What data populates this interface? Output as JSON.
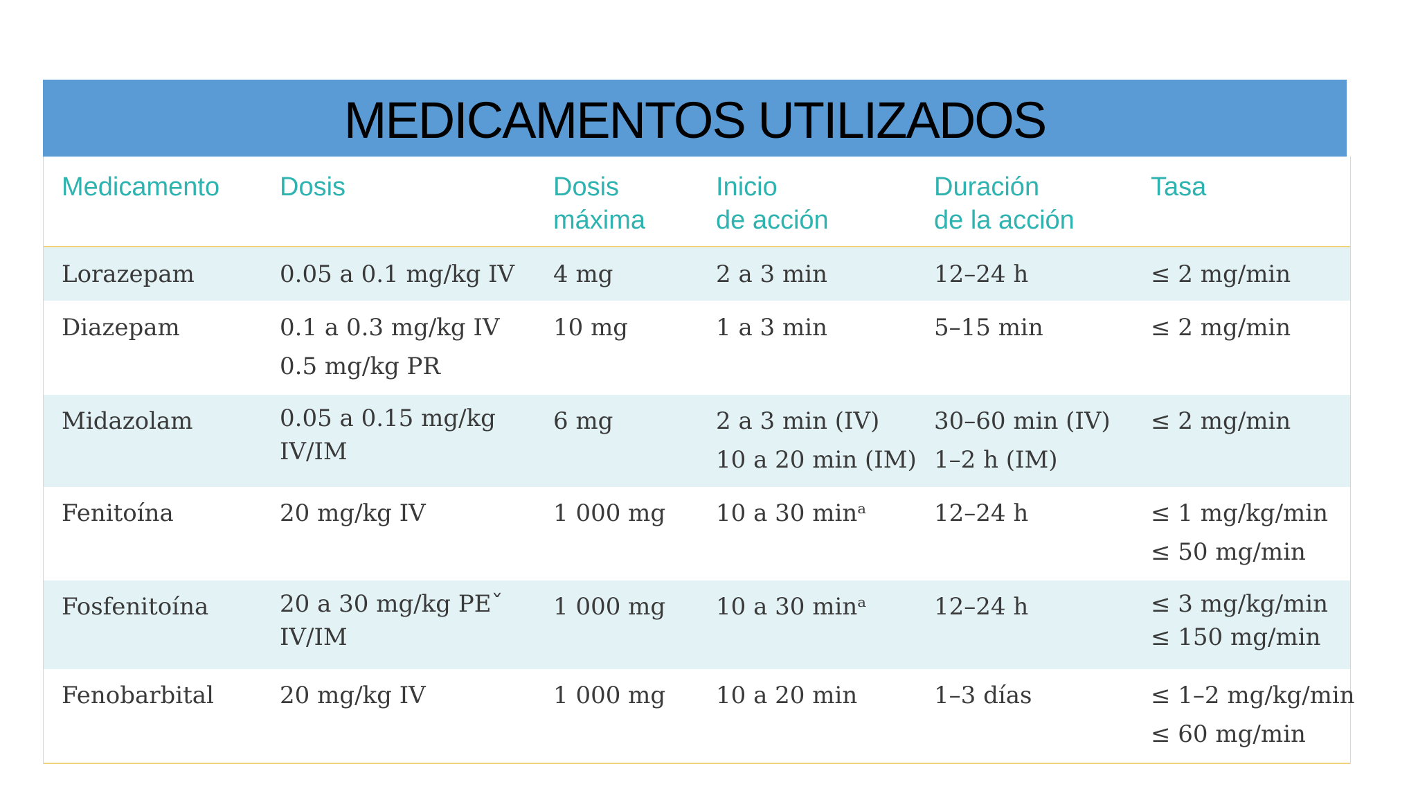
{
  "title": "MEDICAMENTOS UTILIZADOS",
  "table": {
    "headers": [
      "Medicamento",
      "Dosis",
      "Dosis\nmáxima",
      "Inicio\nde acción",
      "Duración\nde la acción",
      "Tasa"
    ],
    "rows": [
      {
        "medicamento": "Lorazepam",
        "dosis": [
          "0.05 a 0.1 mg/kg IV"
        ],
        "dosis_maxima": "4 mg",
        "inicio": [
          "2 a 3 min"
        ],
        "duracion": [
          "12–24 h"
        ],
        "tasa": [
          "≤ 2 mg/min"
        ]
      },
      {
        "medicamento": "Diazepam",
        "dosis": [
          "0.1 a 0.3 mg/kg IV",
          "0.5 mg/kg PR"
        ],
        "dosis_maxima": "10 mg",
        "inicio": [
          "1 a 3 min"
        ],
        "duracion": [
          "5–15 min"
        ],
        "tasa": [
          "≤ 2 mg/min"
        ]
      },
      {
        "medicamento": "Midazolam",
        "dosis": [
          "0.05 a 0.15 mg/kg",
          "IV/IM"
        ],
        "dosis_maxima": "6 mg",
        "inicio": [
          "2 a 3 min (IV)",
          "10 a 20 min (IM)"
        ],
        "duracion": [
          "30–60 min (IV)",
          "1–2 h (IM)"
        ],
        "tasa": [
          "≤ 2 mg/min"
        ]
      },
      {
        "medicamento": "Fenitoína",
        "dosis": [
          "20 mg/kg IV"
        ],
        "dosis_maxima": "1 000 mg",
        "inicio": [
          "10 a 30 minᵃ"
        ],
        "duracion": [
          "12–24 h"
        ],
        "tasa": [
          "≤ 1 mg/kg/min",
          "≤ 50 mg/min"
        ]
      },
      {
        "medicamento": "Fosfenitoína",
        "dosis": [
          "20 a 30 mg/kg PEˇ",
          "IV/IM"
        ],
        "dosis_maxima": "1 000 mg",
        "inicio": [
          "10 a 30 minᵃ"
        ],
        "duracion": [
          "12–24 h"
        ],
        "tasa": [
          "≤ 3 mg/kg/min",
          "≤ 150 mg/min"
        ]
      },
      {
        "medicamento": "Fenobarbital",
        "dosis": [
          "20 mg/kg IV"
        ],
        "dosis_maxima": "1 000 mg",
        "inicio": [
          "10 a 20 min"
        ],
        "duracion": [
          "1–3 días"
        ],
        "tasa": [
          "≤ 1–2 mg/kg/min",
          "≤ 60 mg/min"
        ]
      }
    ]
  }
}
